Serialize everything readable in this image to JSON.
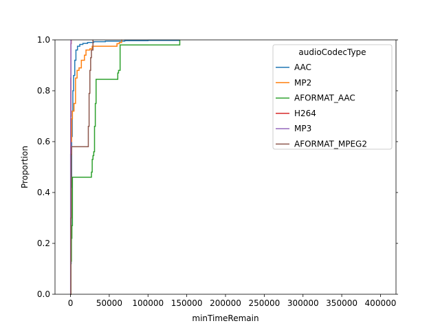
{
  "chart_data": {
    "type": "ecdf",
    "title": "",
    "xlabel": "minTimeRemain",
    "ylabel": "Proportion",
    "xlim": [
      -20000,
      420000
    ],
    "ylim": [
      0,
      1
    ],
    "x_ticks": [
      0,
      50000,
      100000,
      150000,
      200000,
      250000,
      300000,
      350000,
      400000
    ],
    "x_tick_labels": [
      "0",
      "50000",
      "100000",
      "150000",
      "200000",
      "250000",
      "300000",
      "350000",
      "400000"
    ],
    "y_ticks": [
      0,
      0.2,
      0.4,
      0.6,
      0.8,
      1.0
    ],
    "y_tick_labels": [
      "0.0",
      "0.2",
      "0.4",
      "0.6",
      "0.8",
      "1.0"
    ],
    "legend": {
      "title": "audioCodecType",
      "placement": "top-right"
    },
    "grid": false,
    "series": [
      {
        "name": "AAC",
        "color": "#1f77b4",
        "points": [
          [
            -500,
            0
          ],
          [
            300,
            0.12
          ],
          [
            900,
            0.42
          ],
          [
            1500,
            0.62
          ],
          [
            2200,
            0.72
          ],
          [
            3000,
            0.8
          ],
          [
            4000,
            0.86
          ],
          [
            5500,
            0.92
          ],
          [
            7000,
            0.96
          ],
          [
            9000,
            0.975
          ],
          [
            12000,
            0.982
          ],
          [
            16000,
            0.986
          ],
          [
            22000,
            0.99
          ],
          [
            30000,
            0.993
          ],
          [
            45000,
            0.995
          ],
          [
            70000,
            0.997
          ],
          [
            100000,
            0.998
          ],
          [
            140000,
            1.0
          ]
        ]
      },
      {
        "name": "MP2",
        "color": "#ff7f0e",
        "points": [
          [
            0,
            0
          ],
          [
            500,
            0.6
          ],
          [
            1500,
            0.69
          ],
          [
            2500,
            0.72
          ],
          [
            4500,
            0.75
          ],
          [
            6500,
            0.85
          ],
          [
            8500,
            0.88
          ],
          [
            11000,
            0.89
          ],
          [
            14000,
            0.92
          ],
          [
            18000,
            0.94
          ],
          [
            20000,
            0.96
          ],
          [
            25000,
            0.965
          ],
          [
            28000,
            0.975
          ],
          [
            40000,
            0.975
          ],
          [
            60000,
            0.985
          ],
          [
            63000,
            0.99
          ],
          [
            66000,
            1.0
          ]
        ]
      },
      {
        "name": "AFORMAT_AAC",
        "color": "#2ca02c",
        "points": [
          [
            0,
            0
          ],
          [
            500,
            0.13
          ],
          [
            1200,
            0.22
          ],
          [
            1800,
            0.27
          ],
          [
            2500,
            0.46
          ],
          [
            26000,
            0.46
          ],
          [
            27000,
            0.48
          ],
          [
            28000,
            0.53
          ],
          [
            29000,
            0.545
          ],
          [
            30000,
            0.56
          ],
          [
            31000,
            0.66
          ],
          [
            32000,
            0.75
          ],
          [
            33000,
            0.845
          ],
          [
            60000,
            0.845
          ],
          [
            61000,
            0.87
          ],
          [
            62000,
            0.88
          ],
          [
            64000,
            0.98
          ],
          [
            140000,
            0.98
          ],
          [
            141000,
            1.0
          ]
        ]
      },
      {
        "name": "H264",
        "color": "#d62728",
        "points": [
          [
            -200,
            0
          ],
          [
            200,
            0.7
          ],
          [
            500,
            0.985
          ],
          [
            900,
            1.0
          ]
        ]
      },
      {
        "name": "MP3",
        "color": "#9467bd",
        "points": [
          [
            -100,
            0
          ],
          [
            100,
            0.55
          ],
          [
            300,
            0.85
          ],
          [
            600,
            1.0
          ]
        ]
      },
      {
        "name": "AFORMAT_MPEG2",
        "color": "#8c564b",
        "points": [
          [
            0,
            0
          ],
          [
            500,
            0.3
          ],
          [
            1000,
            0.55
          ],
          [
            1500,
            0.58
          ],
          [
            22000,
            0.58
          ],
          [
            23000,
            0.66
          ],
          [
            24000,
            0.79
          ],
          [
            25000,
            0.88
          ],
          [
            26000,
            0.93
          ],
          [
            27000,
            0.96
          ],
          [
            29000,
            1.0
          ]
        ]
      }
    ]
  }
}
